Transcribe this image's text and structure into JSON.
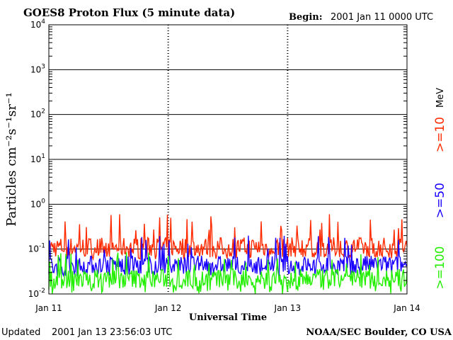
{
  "header": {
    "title": "GOES8 Proton Flux (5 minute data)",
    "begin_label": "Begin:",
    "begin_value": "2001 Jan 11 0000 UTC"
  },
  "footer": {
    "updated_label": "Updated",
    "updated_value": "2001 Jan 13 23:56:03 UTC",
    "credit": "NOAA/SEC Boulder, CO USA"
  },
  "chart_data": {
    "type": "line",
    "title": "GOES8 Proton Flux (5 minute data)",
    "xlabel": "Universal Time",
    "ylabel": "Particles cm⁻²s⁻¹sr⁻¹",
    "y_scale": "log",
    "ylim": [
      0.01,
      10000
    ],
    "y_ticks": [
      {
        "value": 0.01,
        "base": "10",
        "exp": "-2"
      },
      {
        "value": 0.1,
        "base": "10",
        "exp": "-1"
      },
      {
        "value": 1,
        "base": "10",
        "exp": "0"
      },
      {
        "value": 10,
        "base": "10",
        "exp": "1"
      },
      {
        "value": 100,
        "base": "10",
        "exp": "2"
      },
      {
        "value": 1000,
        "base": "10",
        "exp": "3"
      },
      {
        "value": 10000,
        "base": "10",
        "exp": "4"
      }
    ],
    "x_ticks": [
      "Jan 11",
      "Jan 12",
      "Jan 13",
      "Jan 14"
    ],
    "x_range_days": [
      0,
      3
    ],
    "units_label": "MeV",
    "series": [
      {
        "name": ">=10",
        "color": "#ff2a00",
        "base": 0.11,
        "low": 0.06,
        "high": 0.6
      },
      {
        "name": ">=50",
        "color": "#1a00ff",
        "base": 0.045,
        "low": 0.025,
        "high": 0.2
      },
      {
        "name": ">=100",
        "color": "#22ee00",
        "base": 0.022,
        "low": 0.01,
        "high": 0.09
      }
    ]
  }
}
